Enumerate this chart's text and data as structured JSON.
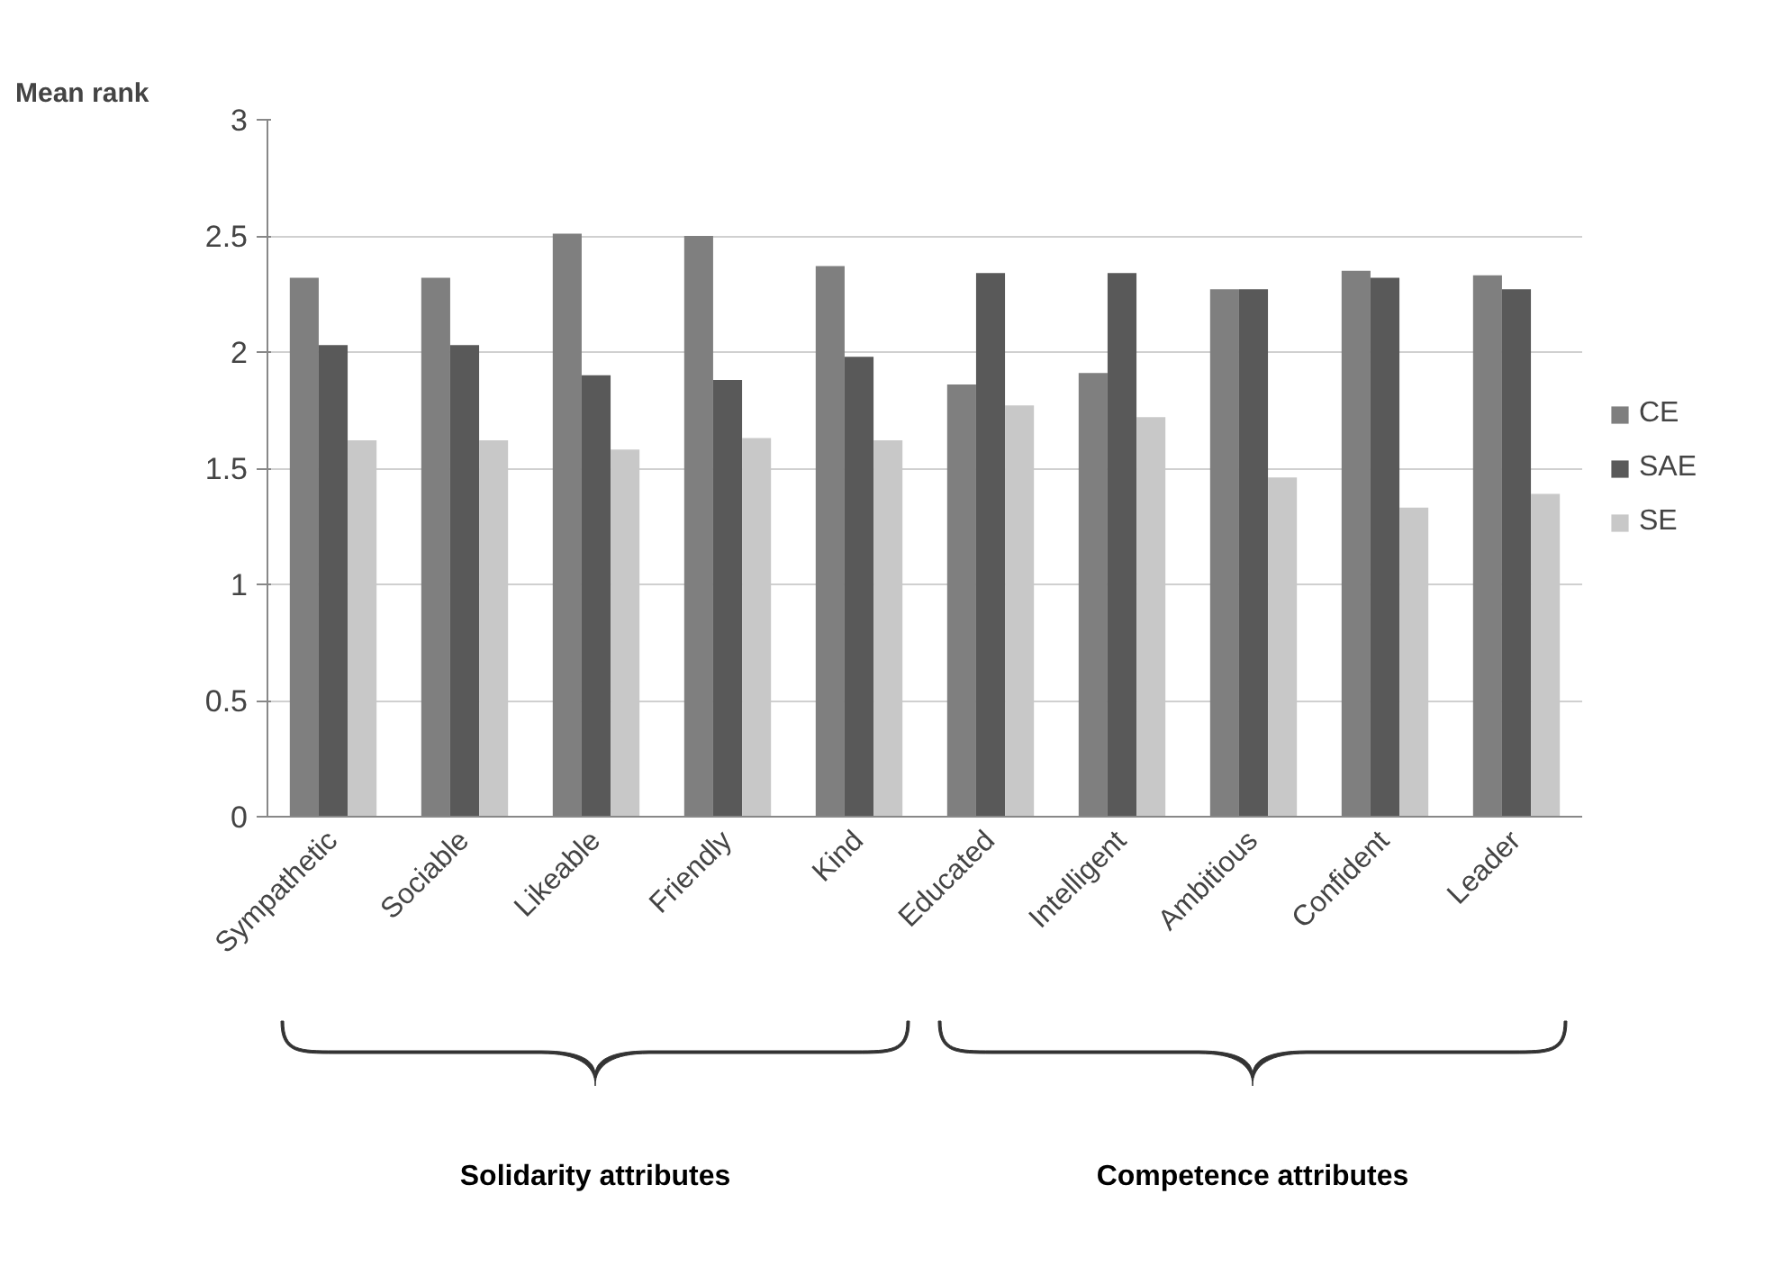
{
  "chart_data": {
    "type": "bar",
    "ylabel": "Mean rank",
    "categories": [
      "Sympathetic",
      "Sociable",
      "Likeable",
      "Friendly",
      "Kind",
      "Educated",
      "Intelligent",
      "Ambitious",
      "Confident",
      "Leader"
    ],
    "series": [
      {
        "name": "CE",
        "color": "#7f7f7f",
        "values": [
          2.32,
          2.32,
          2.51,
          2.5,
          2.37,
          1.86,
          1.91,
          2.27,
          2.35,
          2.33
        ]
      },
      {
        "name": "SAE",
        "color": "#595959",
        "values": [
          2.03,
          2.03,
          1.9,
          1.88,
          1.98,
          2.34,
          2.34,
          2.27,
          2.32,
          2.27
        ]
      },
      {
        "name": "SE",
        "color": "#c8c8c8",
        "values": [
          1.62,
          1.62,
          1.58,
          1.63,
          1.62,
          1.77,
          1.72,
          1.46,
          1.33,
          1.39
        ]
      }
    ],
    "ylim": [
      0,
      3
    ],
    "yticks": [
      0,
      0.5,
      1,
      1.5,
      2,
      2.5,
      3
    ],
    "grid": "y",
    "legend": "right",
    "annotations": [
      "Solidarity attributes",
      "Competence attributes"
    ]
  }
}
